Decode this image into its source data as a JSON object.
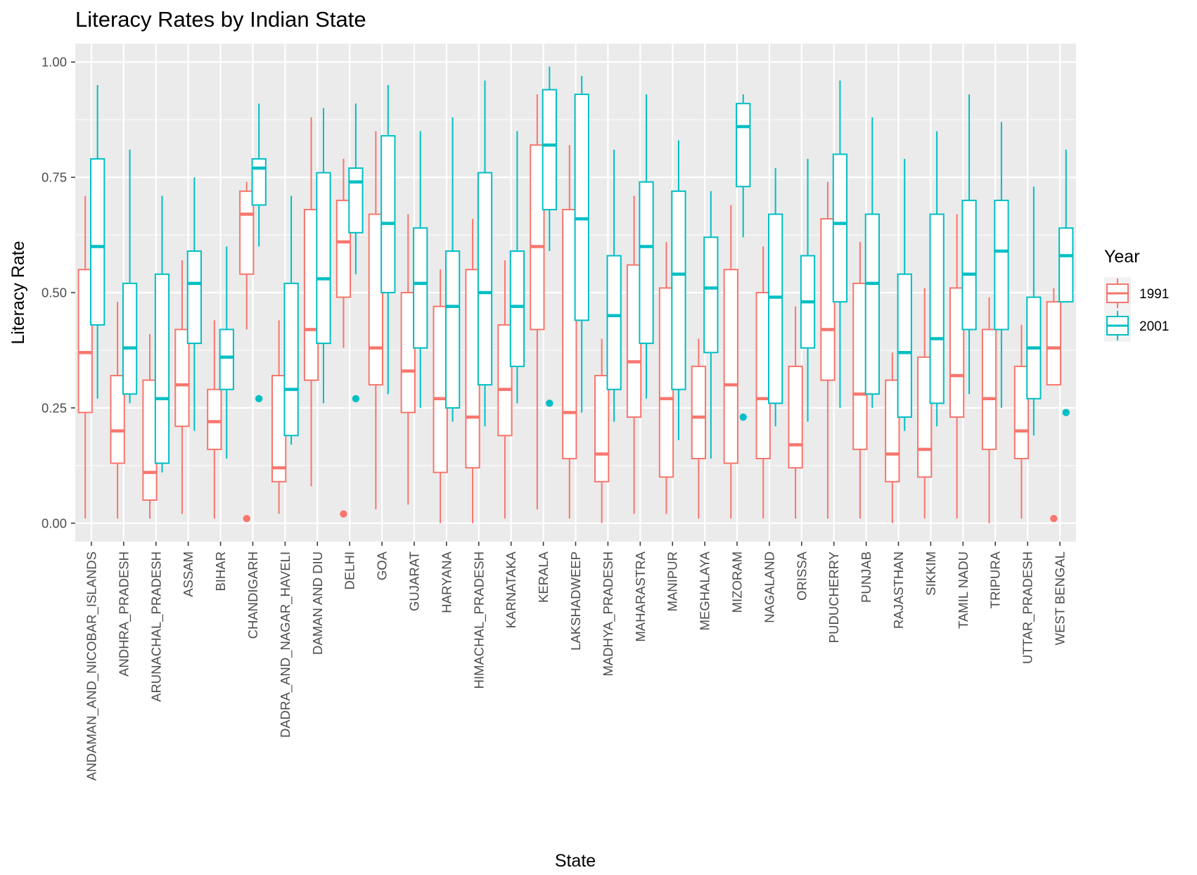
{
  "chart_data": {
    "type": "boxplot",
    "title": "Literacy Rates by Indian State",
    "xlabel": "State",
    "ylabel": "Literacy Rate",
    "ylim": [
      -0.04,
      1.04
    ],
    "yticks": [
      "0.00",
      "0.25",
      "0.50",
      "0.75",
      "1.00"
    ],
    "ytick_values": [
      0,
      0.25,
      0.5,
      0.75,
      1.0
    ],
    "grid": true,
    "legend": {
      "title": "Year",
      "position": "right",
      "entries": [
        {
          "label": "1991",
          "color": "#F8766D"
        },
        {
          "label": "2001",
          "color": "#00BFC4"
        }
      ]
    },
    "colors": {
      "panel": "#EBEBEB",
      "grid": "#FFFFFF",
      "s1991": "#F8766D",
      "s2001": "#00BFC4"
    },
    "categories": [
      "ANDAMAN_AND_NICOBAR_ISLANDS",
      "ANDHRA_PRADESH",
      "ARUNACHAL_PRADESH",
      "ASSAM",
      "BIHAR",
      "CHANDIGARH",
      "DADRA_AND_NAGAR_HAVELI",
      "DAMAN AND DIU",
      "DELHI",
      "GOA",
      "GUJARAT",
      "HARYANA",
      "HIMACHAL_PRADESH",
      "KARNATAKA",
      "KERALA",
      "LAKSHADWEEP",
      "MADHYA_PRADESH",
      "MAHARASTRA",
      "MANIPUR",
      "MEGHALAYA",
      "MIZORAM",
      "NAGALAND",
      "ORISSA",
      "PUDUCHERRY",
      "PUNJAB",
      "RAJASTHAN",
      "SIKKIM",
      "TAMIL NADU",
      "TRIPURA",
      "UTTAR_PRADESH",
      "WEST BENGAL"
    ],
    "series": [
      {
        "name": "1991",
        "color": "#F8766D",
        "boxes": [
          {
            "min": 0.01,
            "q1": 0.24,
            "median": 0.37,
            "q3": 0.55,
            "max": 0.71,
            "outliers": []
          },
          {
            "min": 0.01,
            "q1": 0.13,
            "median": 0.2,
            "q3": 0.32,
            "max": 0.48,
            "outliers": []
          },
          {
            "min": 0.01,
            "q1": 0.05,
            "median": 0.11,
            "q3": 0.31,
            "max": 0.41,
            "outliers": []
          },
          {
            "min": 0.02,
            "q1": 0.21,
            "median": 0.3,
            "q3": 0.42,
            "max": 0.57,
            "outliers": []
          },
          {
            "min": 0.01,
            "q1": 0.16,
            "median": 0.22,
            "q3": 0.29,
            "max": 0.44,
            "outliers": []
          },
          {
            "min": 0.42,
            "q1": 0.54,
            "median": 0.67,
            "q3": 0.72,
            "max": 0.74,
            "outliers": [
              0.01
            ]
          },
          {
            "min": 0.02,
            "q1": 0.09,
            "median": 0.12,
            "q3": 0.32,
            "max": 0.44,
            "outliers": []
          },
          {
            "min": 0.08,
            "q1": 0.31,
            "median": 0.42,
            "q3": 0.68,
            "max": 0.88,
            "outliers": []
          },
          {
            "min": 0.38,
            "q1": 0.49,
            "median": 0.61,
            "q3": 0.7,
            "max": 0.79,
            "outliers": [
              0.02
            ]
          },
          {
            "min": 0.03,
            "q1": 0.3,
            "median": 0.38,
            "q3": 0.67,
            "max": 0.85,
            "outliers": []
          },
          {
            "min": 0.04,
            "q1": 0.24,
            "median": 0.33,
            "q3": 0.5,
            "max": 0.67,
            "outliers": []
          },
          {
            "min": 0.0,
            "q1": 0.11,
            "median": 0.27,
            "q3": 0.47,
            "max": 0.55,
            "outliers": []
          },
          {
            "min": 0.0,
            "q1": 0.12,
            "median": 0.23,
            "q3": 0.55,
            "max": 0.66,
            "outliers": []
          },
          {
            "min": 0.01,
            "q1": 0.19,
            "median": 0.29,
            "q3": 0.43,
            "max": 0.57,
            "outliers": []
          },
          {
            "min": 0.03,
            "q1": 0.42,
            "median": 0.6,
            "q3": 0.82,
            "max": 0.93,
            "outliers": []
          },
          {
            "min": 0.01,
            "q1": 0.14,
            "median": 0.24,
            "q3": 0.68,
            "max": 0.82,
            "outliers": []
          },
          {
            "min": 0.0,
            "q1": 0.09,
            "median": 0.15,
            "q3": 0.32,
            "max": 0.4,
            "outliers": []
          },
          {
            "min": 0.02,
            "q1": 0.23,
            "median": 0.35,
            "q3": 0.56,
            "max": 0.71,
            "outliers": []
          },
          {
            "min": 0.02,
            "q1": 0.1,
            "median": 0.27,
            "q3": 0.51,
            "max": 0.61,
            "outliers": []
          },
          {
            "min": 0.01,
            "q1": 0.14,
            "median": 0.23,
            "q3": 0.34,
            "max": 0.4,
            "outliers": []
          },
          {
            "min": 0.01,
            "q1": 0.13,
            "median": 0.3,
            "q3": 0.55,
            "max": 0.69,
            "outliers": []
          },
          {
            "min": 0.01,
            "q1": 0.14,
            "median": 0.27,
            "q3": 0.5,
            "max": 0.6,
            "outliers": []
          },
          {
            "min": 0.01,
            "q1": 0.12,
            "median": 0.17,
            "q3": 0.34,
            "max": 0.47,
            "outliers": []
          },
          {
            "min": 0.01,
            "q1": 0.31,
            "median": 0.42,
            "q3": 0.66,
            "max": 0.74,
            "outliers": []
          },
          {
            "min": 0.01,
            "q1": 0.16,
            "median": 0.28,
            "q3": 0.52,
            "max": 0.61,
            "outliers": []
          },
          {
            "min": 0.0,
            "q1": 0.09,
            "median": 0.15,
            "q3": 0.31,
            "max": 0.37,
            "outliers": []
          },
          {
            "min": 0.01,
            "q1": 0.1,
            "median": 0.16,
            "q3": 0.36,
            "max": 0.51,
            "outliers": []
          },
          {
            "min": 0.01,
            "q1": 0.23,
            "median": 0.32,
            "q3": 0.51,
            "max": 0.67,
            "outliers": []
          },
          {
            "min": 0.0,
            "q1": 0.16,
            "median": 0.27,
            "q3": 0.42,
            "max": 0.49,
            "outliers": []
          },
          {
            "min": 0.01,
            "q1": 0.14,
            "median": 0.2,
            "q3": 0.34,
            "max": 0.43,
            "outliers": []
          },
          {
            "min": 0.3,
            "q1": 0.3,
            "median": 0.38,
            "q3": 0.48,
            "max": 0.51,
            "outliers": [
              0.01
            ]
          }
        ]
      },
      {
        "name": "2001",
        "color": "#00BFC4",
        "boxes": [
          {
            "min": 0.27,
            "q1": 0.43,
            "median": 0.6,
            "q3": 0.79,
            "max": 0.95,
            "outliers": []
          },
          {
            "min": 0.26,
            "q1": 0.28,
            "median": 0.38,
            "q3": 0.52,
            "max": 0.81,
            "outliers": []
          },
          {
            "min": 0.11,
            "q1": 0.13,
            "median": 0.27,
            "q3": 0.54,
            "max": 0.71,
            "outliers": []
          },
          {
            "min": 0.2,
            "q1": 0.39,
            "median": 0.52,
            "q3": 0.59,
            "max": 0.75,
            "outliers": []
          },
          {
            "min": 0.14,
            "q1": 0.29,
            "median": 0.36,
            "q3": 0.42,
            "max": 0.6,
            "outliers": []
          },
          {
            "min": 0.6,
            "q1": 0.69,
            "median": 0.77,
            "q3": 0.79,
            "max": 0.91,
            "outliers": [
              0.27
            ]
          },
          {
            "min": 0.17,
            "q1": 0.19,
            "median": 0.29,
            "q3": 0.52,
            "max": 0.71,
            "outliers": []
          },
          {
            "min": 0.26,
            "q1": 0.39,
            "median": 0.53,
            "q3": 0.76,
            "max": 0.9,
            "outliers": []
          },
          {
            "min": 0.54,
            "q1": 0.63,
            "median": 0.74,
            "q3": 0.77,
            "max": 0.91,
            "outliers": [
              0.27
            ]
          },
          {
            "min": 0.28,
            "q1": 0.5,
            "median": 0.65,
            "q3": 0.84,
            "max": 0.95,
            "outliers": []
          },
          {
            "min": 0.25,
            "q1": 0.38,
            "median": 0.52,
            "q3": 0.64,
            "max": 0.85,
            "outliers": []
          },
          {
            "min": 0.22,
            "q1": 0.25,
            "median": 0.47,
            "q3": 0.59,
            "max": 0.88,
            "outliers": []
          },
          {
            "min": 0.21,
            "q1": 0.3,
            "median": 0.5,
            "q3": 0.76,
            "max": 0.96,
            "outliers": []
          },
          {
            "min": 0.26,
            "q1": 0.34,
            "median": 0.47,
            "q3": 0.59,
            "max": 0.85,
            "outliers": []
          },
          {
            "min": 0.59,
            "q1": 0.68,
            "median": 0.82,
            "q3": 0.94,
            "max": 0.99,
            "outliers": [
              0.26
            ]
          },
          {
            "min": 0.24,
            "q1": 0.44,
            "median": 0.66,
            "q3": 0.93,
            "max": 0.97,
            "outliers": []
          },
          {
            "min": 0.22,
            "q1": 0.29,
            "median": 0.45,
            "q3": 0.58,
            "max": 0.81,
            "outliers": []
          },
          {
            "min": 0.27,
            "q1": 0.39,
            "median": 0.6,
            "q3": 0.74,
            "max": 0.93,
            "outliers": []
          },
          {
            "min": 0.18,
            "q1": 0.29,
            "median": 0.54,
            "q3": 0.72,
            "max": 0.83,
            "outliers": []
          },
          {
            "min": 0.14,
            "q1": 0.37,
            "median": 0.51,
            "q3": 0.62,
            "max": 0.72,
            "outliers": []
          },
          {
            "min": 0.62,
            "q1": 0.73,
            "median": 0.86,
            "q3": 0.91,
            "max": 0.93,
            "outliers": [
              0.23
            ]
          },
          {
            "min": 0.21,
            "q1": 0.26,
            "median": 0.49,
            "q3": 0.67,
            "max": 0.77,
            "outliers": []
          },
          {
            "min": 0.22,
            "q1": 0.38,
            "median": 0.48,
            "q3": 0.58,
            "max": 0.79,
            "outliers": []
          },
          {
            "min": 0.25,
            "q1": 0.48,
            "median": 0.65,
            "q3": 0.8,
            "max": 0.96,
            "outliers": []
          },
          {
            "min": 0.25,
            "q1": 0.28,
            "median": 0.52,
            "q3": 0.67,
            "max": 0.88,
            "outliers": []
          },
          {
            "min": 0.2,
            "q1": 0.23,
            "median": 0.37,
            "q3": 0.54,
            "max": 0.79,
            "outliers": []
          },
          {
            "min": 0.21,
            "q1": 0.26,
            "median": 0.4,
            "q3": 0.67,
            "max": 0.85,
            "outliers": []
          },
          {
            "min": 0.28,
            "q1": 0.42,
            "median": 0.54,
            "q3": 0.7,
            "max": 0.93,
            "outliers": []
          },
          {
            "min": 0.25,
            "q1": 0.42,
            "median": 0.59,
            "q3": 0.7,
            "max": 0.87,
            "outliers": []
          },
          {
            "min": 0.19,
            "q1": 0.27,
            "median": 0.38,
            "q3": 0.49,
            "max": 0.73,
            "outliers": []
          },
          {
            "min": 0.48,
            "q1": 0.48,
            "median": 0.58,
            "q3": 0.64,
            "max": 0.81,
            "outliers": [
              0.24
            ]
          }
        ]
      }
    ]
  }
}
